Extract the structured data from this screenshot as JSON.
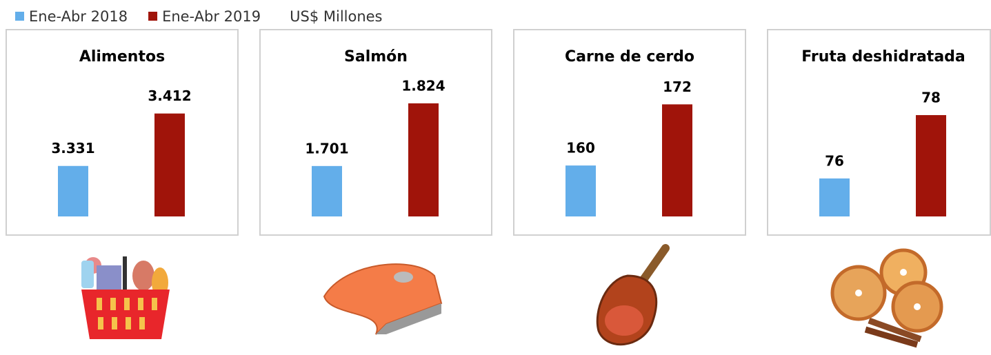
{
  "legend": {
    "items": [
      {
        "name": "Ene-Abr 2018",
        "color": "#63aeea"
      },
      {
        "name": "Ene-Abr 2019",
        "color": "#a0140a"
      }
    ],
    "note": "US$ Millones"
  },
  "chart_data": [
    {
      "type": "bar",
      "title": "Alimentos",
      "values": [
        3331,
        3412
      ],
      "value_labels": [
        "3.331",
        "3.412"
      ],
      "ylim": [
        3253,
        3434
      ]
    },
    {
      "type": "bar",
      "title": "Salmón",
      "values": [
        1701,
        1824
      ],
      "value_labels": [
        "1.701",
        "1.824"
      ],
      "ylim": [
        1602,
        1832
      ]
    },
    {
      "type": "bar",
      "title": "Carne de cerdo",
      "values": [
        160,
        172
      ],
      "value_labels": [
        "160",
        "172"
      ],
      "ylim": [
        150,
        173
      ]
    },
    {
      "type": "bar",
      "title": "Fruta deshidratada",
      "values": [
        76,
        78
      ],
      "value_labels": [
        "76",
        "78"
      ],
      "ylim": [
        74.8,
        78.5
      ]
    }
  ]
}
